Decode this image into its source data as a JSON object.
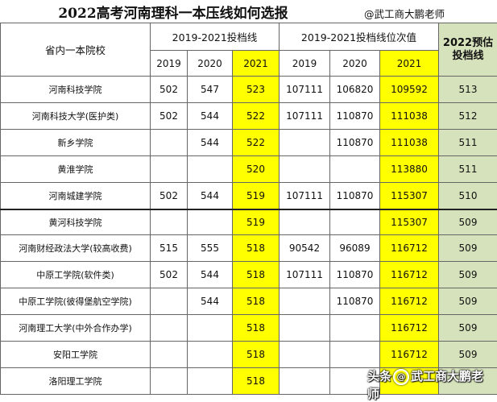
{
  "title": "2022高考河南理科一本压线如何选报",
  "author": "@武工商大鹏老师",
  "header": {
    "school_col": "省内一本院校",
    "group1": "2019-2021投档线",
    "group2": "2019-2021投档线位次值",
    "estimate": "2022预估投档线",
    "years": [
      "2019",
      "2020",
      "2021"
    ]
  },
  "rows": [
    {
      "name": "河南科技学院",
      "s2019": "502",
      "s2020": "547",
      "s2021": "523",
      "r2019": "107111",
      "r2020": "106820",
      "r2021": "109592",
      "est": "513"
    },
    {
      "name": "河南科技大学(医护类)",
      "s2019": "502",
      "s2020": "544",
      "s2021": "522",
      "r2019": "107111",
      "r2020": "110870",
      "r2021": "111038",
      "est": "512"
    },
    {
      "name": "新乡学院",
      "s2019": "",
      "s2020": "544",
      "s2021": "522",
      "r2019": "",
      "r2020": "110870",
      "r2021": "111038",
      "est": "511"
    },
    {
      "name": "黄淮学院",
      "s2019": "",
      "s2020": "",
      "s2021": "520",
      "r2019": "",
      "r2020": "",
      "r2021": "113880",
      "est": "511"
    },
    {
      "name": "河南城建学院",
      "s2019": "502",
      "s2020": "544",
      "s2021": "519",
      "r2019": "107111",
      "r2020": "110870",
      "r2021": "115307",
      "est": "510"
    },
    {
      "name": "黄河科技学院",
      "s2019": "",
      "s2020": "",
      "s2021": "519",
      "r2019": "",
      "r2020": "",
      "r2021": "115307",
      "est": "509"
    },
    {
      "name": "河南财经政法大学(较高收费)",
      "s2019": "515",
      "s2020": "555",
      "s2021": "518",
      "r2019": "90542",
      "r2020": "96089",
      "r2021": "116712",
      "est": "509"
    },
    {
      "name": "中原工学院(软件类)",
      "s2019": "502",
      "s2020": "544",
      "s2021": "518",
      "r2019": "107111",
      "r2020": "110870",
      "r2021": "116712",
      "est": "509"
    },
    {
      "name": "中原工学院(彼得堡航空学院)",
      "s2019": "",
      "s2020": "544",
      "s2021": "518",
      "r2019": "",
      "r2020": "110870",
      "r2021": "116712",
      "est": "509"
    },
    {
      "name": "河南理工大学(中外合作办学)",
      "s2019": "",
      "s2020": "",
      "s2021": "518",
      "r2019": "",
      "r2020": "",
      "r2021": "116712",
      "est": "509"
    },
    {
      "name": "安阳工学院",
      "s2019": "",
      "s2020": "",
      "s2021": "518",
      "r2019": "",
      "r2020": "",
      "r2021": "116712",
      "est": "509"
    },
    {
      "name": "洛阳理工学院",
      "s2019": "",
      "s2020": "",
      "s2021": "518",
      "r2019": "",
      "r2020": "",
      "r2021": "",
      "est": ""
    }
  ],
  "watermark": {
    "prefix": "头条",
    "at": "@",
    "handle": "武工商大鹏老师"
  }
}
